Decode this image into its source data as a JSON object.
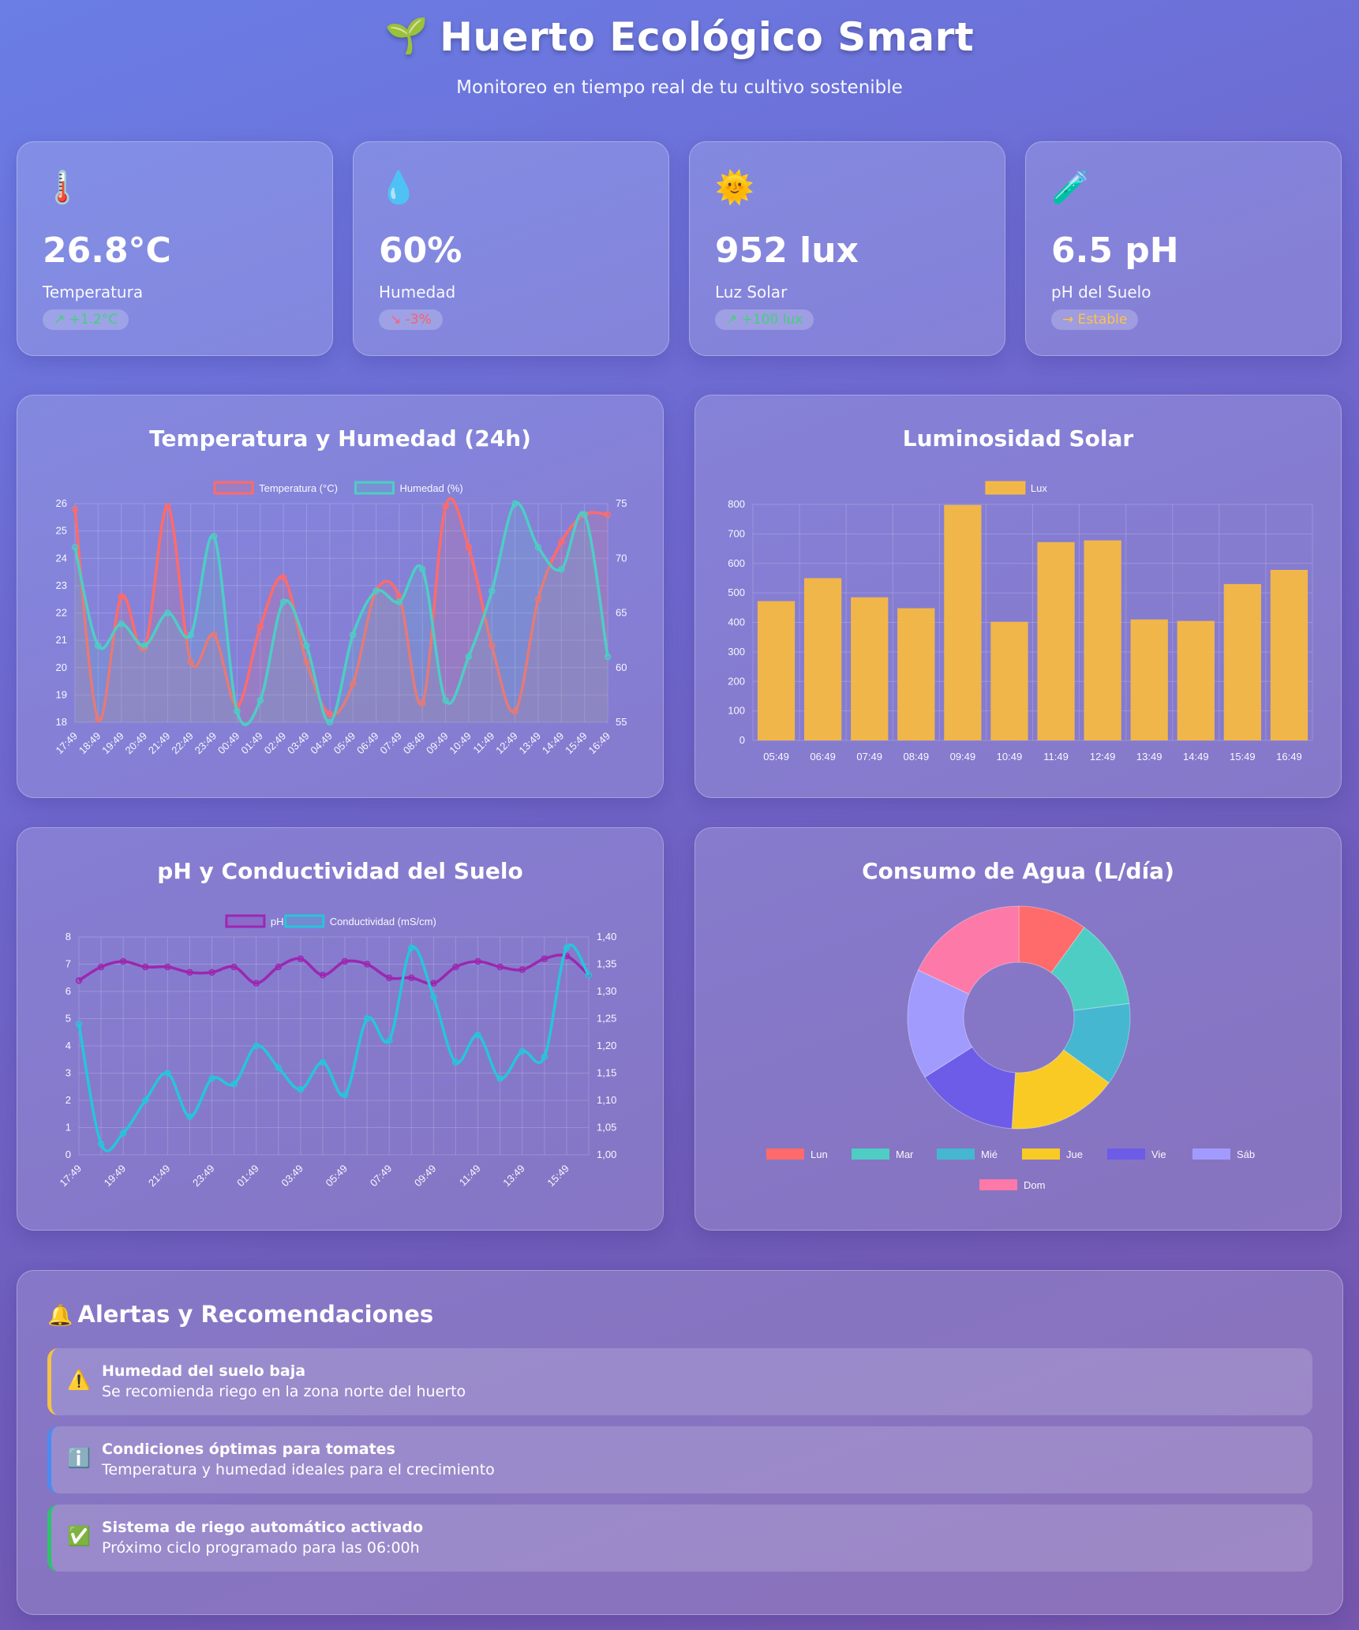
{
  "header": {
    "icon": "sprout-icon",
    "title": "Huerto Ecológico Smart",
    "subtitle": "Monitoreo en tiempo real de tu cultivo sostenible"
  },
  "stats": [
    {
      "icon": "thermometer-icon",
      "emoji": "🌡️",
      "value": "26.8°C",
      "label": "Temperatura",
      "trend": "↗ +1.2°C",
      "trend_dir": "up"
    },
    {
      "icon": "droplet-icon",
      "emoji": "💧",
      "value": "60%",
      "label": "Humedad",
      "trend": "↘ -3%",
      "trend_dir": "down"
    },
    {
      "icon": "sun-icon",
      "emoji": "🌞",
      "value": "952 lux",
      "label": "Luz Solar",
      "trend": "↗ +100 lux",
      "trend_dir": "up"
    },
    {
      "icon": "test-tube-icon",
      "emoji": "🧪",
      "value": "6.5 pH",
      "label": "pH del Suelo",
      "trend": "→ Estable",
      "trend_dir": "flat"
    }
  ],
  "chart_data": [
    {
      "type": "line",
      "title": "Temperatura y Humedad (24h)",
      "x": [
        "17:49",
        "18:49",
        "19:49",
        "20:49",
        "21:49",
        "22:49",
        "23:49",
        "00:49",
        "01:49",
        "02:49",
        "03:49",
        "04:49",
        "05:49",
        "06:49",
        "07:49",
        "08:49",
        "09:49",
        "10:49",
        "11:49",
        "12:49",
        "13:49",
        "14:49",
        "15:49",
        "16:49"
      ],
      "series": [
        {
          "name": "Temperatura (°C)",
          "axis": "left",
          "color": "#ff6b6b",
          "values": [
            25.8,
            18.1,
            22.6,
            20.7,
            25.9,
            20.2,
            21.2,
            18.6,
            21.5,
            23.3,
            20.2,
            18.3,
            19.4,
            22.8,
            22.6,
            18.7,
            25.9,
            24.4,
            20.8,
            18.4,
            22.5,
            24.6,
            25.6,
            25.6
          ]
        },
        {
          "name": "Humedad (%)",
          "axis": "right",
          "color": "#4ecdc4",
          "values": [
            71,
            62,
            64,
            62,
            65,
            63,
            72,
            56,
            57,
            66,
            62,
            55,
            63,
            67,
            66,
            69,
            57,
            61,
            67,
            75,
            71,
            69,
            74,
            61
          ]
        }
      ],
      "y_left": {
        "min": 18,
        "max": 26,
        "ticks": [
          18,
          19,
          20,
          21,
          22,
          23,
          24,
          25,
          26
        ]
      },
      "y_right": {
        "min": 55,
        "max": 75,
        "ticks": [
          55,
          60,
          65,
          70,
          75
        ]
      },
      "legend": "top",
      "grid": true
    },
    {
      "type": "bar",
      "title": "Luminosidad Solar",
      "categories": [
        "05:49",
        "06:49",
        "07:49",
        "08:49",
        "09:49",
        "10:49",
        "11:49",
        "12:49",
        "13:49",
        "14:49",
        "15:49",
        "16:49"
      ],
      "series": [
        {
          "name": "Lux",
          "color": "#f5b942",
          "values": [
            472,
            550,
            485,
            448,
            798,
            402,
            672,
            678,
            410,
            405,
            530,
            578
          ]
        }
      ],
      "ylim": [
        0,
        800
      ],
      "ticks": [
        0,
        100,
        200,
        300,
        400,
        500,
        600,
        700,
        800
      ],
      "legend": "top",
      "grid": true
    },
    {
      "type": "line",
      "title": "pH y Conductividad del Suelo",
      "x": [
        "17:49",
        "18:49",
        "19:49",
        "20:49",
        "21:49",
        "22:49",
        "23:49",
        "00:49",
        "01:49",
        "02:49",
        "03:49",
        "04:49",
        "05:49",
        "06:49",
        "07:49",
        "08:49",
        "09:49",
        "10:49",
        "11:49",
        "12:49",
        "13:49",
        "14:49",
        "15:49",
        "16:49"
      ],
      "x_tick_labels": [
        "17:49",
        "19:49",
        "21:49",
        "23:49",
        "01:49",
        "03:49",
        "05:49",
        "07:49",
        "09:49",
        "11:49",
        "13:49",
        "15:49"
      ],
      "series": [
        {
          "name": "pH",
          "axis": "left",
          "color": "#9c27b0",
          "values": [
            6.4,
            6.9,
            7.1,
            6.9,
            6.9,
            6.7,
            6.7,
            6.9,
            6.3,
            6.9,
            7.2,
            6.6,
            7.1,
            7.0,
            6.5,
            6.5,
            6.3,
            6.9,
            7.1,
            6.9,
            6.8,
            7.2,
            7.3,
            6.6
          ]
        },
        {
          "name": "Conductividad (mS/cm)",
          "axis": "right",
          "color": "#26c6da",
          "values": [
            1.24,
            1.02,
            1.04,
            1.1,
            1.15,
            1.07,
            1.14,
            1.13,
            1.2,
            1.16,
            1.12,
            1.17,
            1.11,
            1.25,
            1.21,
            1.38,
            1.29,
            1.17,
            1.22,
            1.14,
            1.19,
            1.18,
            1.38,
            1.33
          ]
        }
      ],
      "y_left": {
        "min": 0,
        "max": 8,
        "ticks": [
          0,
          1,
          2,
          3,
          4,
          5,
          6,
          7,
          8
        ]
      },
      "y_right": {
        "min": 1.0,
        "max": 1.4,
        "ticks": [
          "1,00",
          "1,05",
          "1,10",
          "1,15",
          "1,20",
          "1,25",
          "1,30",
          "1,35",
          "1,40"
        ]
      },
      "legend": "top",
      "grid": true
    },
    {
      "type": "pie",
      "variant": "doughnut",
      "title": "Consumo de Agua (L/día)",
      "categories": [
        "Lun",
        "Mar",
        "Mié",
        "Jue",
        "Vie",
        "Sáb",
        "Dom"
      ],
      "values": [
        10,
        13,
        12,
        16,
        15,
        16,
        18
      ],
      "colors": [
        "#ff6b6b",
        "#4ecdc4",
        "#45b7d1",
        "#f9ca24",
        "#6c5ce7",
        "#a29bfe",
        "#fd79a8"
      ],
      "legend": "bottom"
    }
  ],
  "alerts": {
    "icon": "bell-icon",
    "title": "Alertas y Recomendaciones",
    "items": [
      {
        "icon": "warning-icon",
        "emoji": "⚠️",
        "type": "warn",
        "title": "Humedad del suelo baja",
        "desc": "Se recomienda riego en la zona norte del huerto"
      },
      {
        "icon": "info-icon",
        "emoji": "ℹ️",
        "type": "info",
        "title": "Condiciones óptimas para tomates",
        "desc": "Temperatura y humedad ideales para el crecimiento"
      },
      {
        "icon": "check-icon",
        "emoji": "✅",
        "type": "ok",
        "title": "Sistema de riego automático activado",
        "desc": "Próximo ciclo programado para las 06:00h"
      }
    ]
  }
}
